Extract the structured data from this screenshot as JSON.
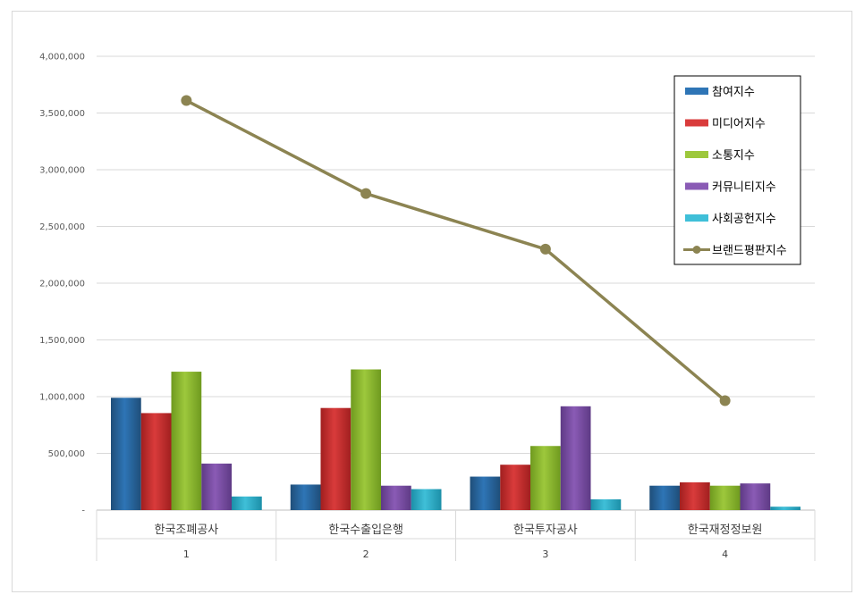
{
  "chart_data": {
    "type": "bar",
    "categories": [
      "한국조폐공사",
      "한국수출입은행",
      "한국투자공사",
      "한국재정정보원"
    ],
    "category_numbers": [
      "1",
      "2",
      "3",
      "4"
    ],
    "ylim": [
      0,
      4000000
    ],
    "y_ticks": [
      {
        "value": 0,
        "label": "-"
      },
      {
        "value": 500000,
        "label": "500,000"
      },
      {
        "value": 1000000,
        "label": "1,000,000"
      },
      {
        "value": 1500000,
        "label": "1,500,000"
      },
      {
        "value": 2000000,
        "label": "2,000,000"
      },
      {
        "value": 2500000,
        "label": "2,500,000"
      },
      {
        "value": 3000000,
        "label": "3,000,000"
      },
      {
        "value": 3500000,
        "label": "3,500,000"
      },
      {
        "value": 4000000,
        "label": "4,000,000"
      }
    ],
    "grid": true,
    "legend_position": "top-right",
    "series": [
      {
        "name": "참여지수",
        "type": "bar",
        "color": "#2e75b6",
        "color_dark": "#1f4e79",
        "values": [
          990000,
          225000,
          295000,
          215000
        ]
      },
      {
        "name": "미디어지수",
        "type": "bar",
        "color": "#d93b3b",
        "color_dark": "#a11f1f",
        "values": [
          855000,
          900000,
          400000,
          245000
        ]
      },
      {
        "name": "소통지수",
        "type": "bar",
        "color": "#9dc83c",
        "color_dark": "#6f9a1f",
        "values": [
          1220000,
          1240000,
          565000,
          215000
        ]
      },
      {
        "name": "커뮤니티지수",
        "type": "bar",
        "color": "#8a5bb5",
        "color_dark": "#5e3a85",
        "values": [
          410000,
          215000,
          915000,
          235000
        ]
      },
      {
        "name": "사회공헌지수",
        "type": "bar",
        "color": "#3fbfd8",
        "color_dark": "#1c8fa8",
        "values": [
          120000,
          185000,
          95000,
          30000
        ]
      },
      {
        "name": "브랜드평판지수",
        "type": "line",
        "color": "#8c8452",
        "values": [
          3610000,
          2790000,
          2300000,
          965000
        ]
      }
    ]
  }
}
